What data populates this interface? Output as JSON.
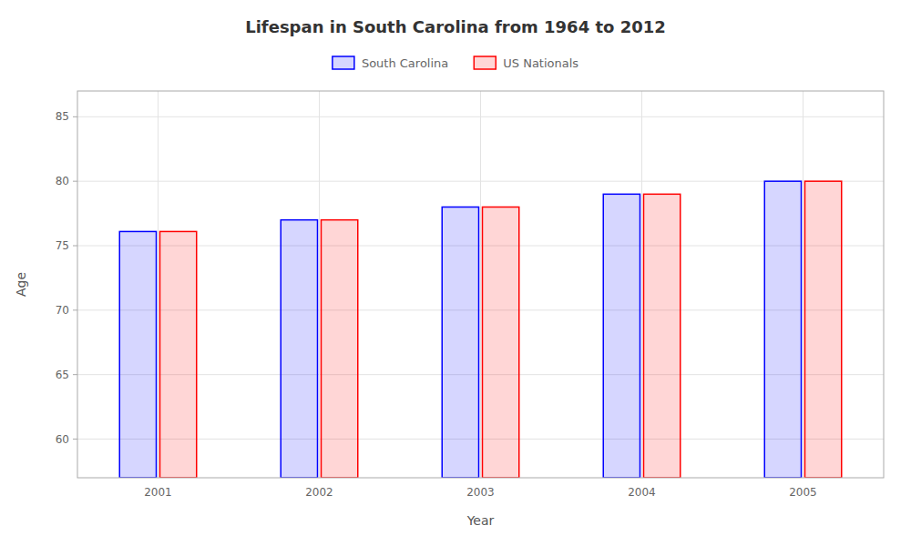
{
  "chart_data": {
    "type": "bar",
    "title": "Lifespan in South Carolina from 1964 to 2012",
    "x_label": "Year",
    "y_label": "Age",
    "categories": [
      "2001",
      "2002",
      "2003",
      "2004",
      "2005"
    ],
    "series": [
      {
        "name": "South Carolina",
        "color": "#0000ff",
        "values": [
          76.1,
          77.0,
          78.0,
          79.0,
          80.0
        ]
      },
      {
        "name": "US Nationals",
        "color": "#ff0000",
        "values": [
          76.1,
          77.0,
          78.0,
          79.0,
          80.0
        ]
      }
    ],
    "ylim": [
      57,
      87
    ],
    "yticks": [
      60,
      65,
      70,
      75,
      80,
      85
    ],
    "grid": true,
    "legend": "top"
  }
}
